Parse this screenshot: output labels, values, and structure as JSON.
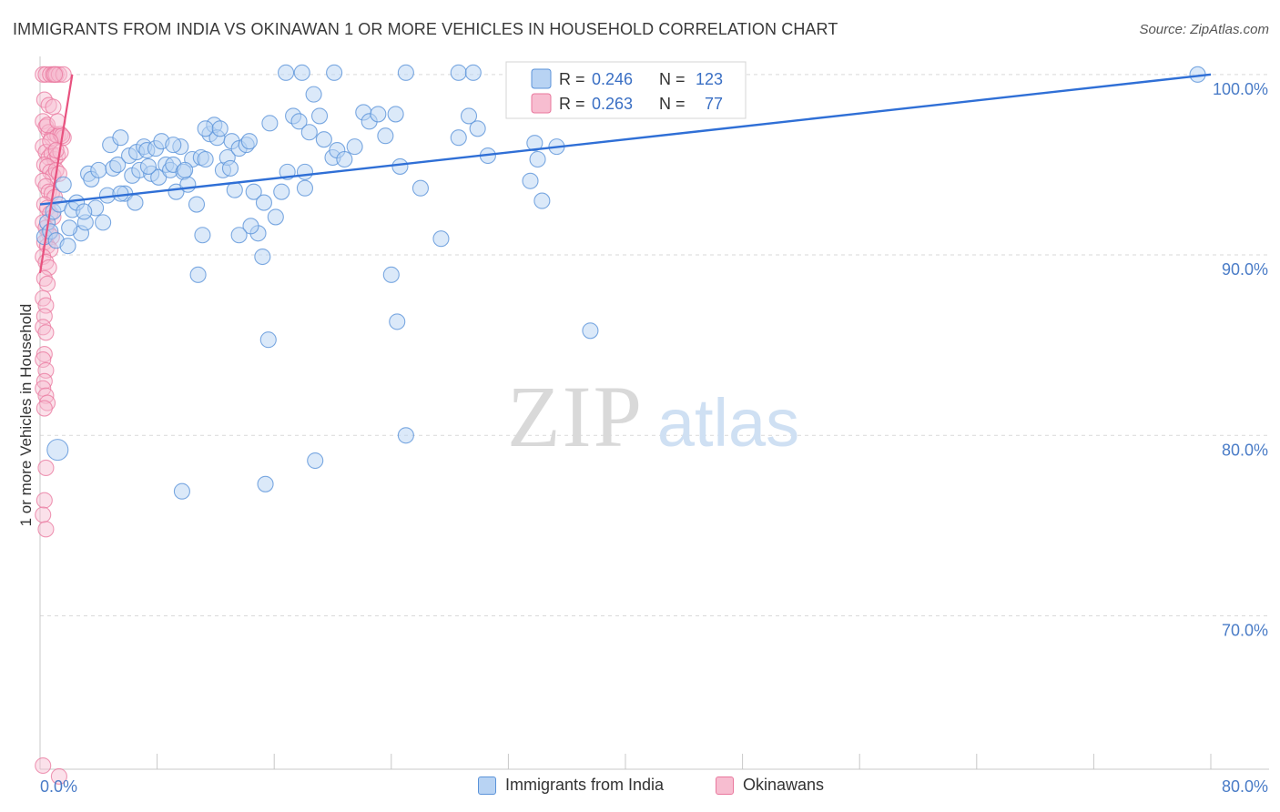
{
  "header": {
    "title": "IMMIGRANTS FROM INDIA VS OKINAWAN 1 OR MORE VEHICLES IN HOUSEHOLD CORRELATION CHART",
    "source": "Source: ZipAtlas.com"
  },
  "watermark": {
    "zip": "ZIP",
    "atlas": "atlas"
  },
  "colors": {
    "blue_fill": "#b8d3f3",
    "blue_stroke": "#5b93d9",
    "blue_line": "#2f6fd6",
    "pink_fill": "#f7bdd0",
    "pink_stroke": "#e9779d",
    "pink_line": "#e8527f",
    "tick_label": "#4a7cc7",
    "grid": "#d9d9d9"
  },
  "stats_legend": [
    {
      "r_label": "R =",
      "r_value": "0.246",
      "n_label": "N =",
      "n_value": "123"
    },
    {
      "r_label": "R =",
      "r_value": "0.263",
      "n_label": "N =",
      "n_value": "77"
    }
  ],
  "chart_data": {
    "type": "scatter",
    "title": "IMMIGRANTS FROM INDIA VS OKINAWAN 1 OR MORE VEHICLES IN HOUSEHOLD CORRELATION CHART",
    "xlabel": "",
    "ylabel": "1 or more Vehicles in Household",
    "xlim": [
      0,
      80
    ],
    "ylim": [
      61.5,
      101
    ],
    "x_tick_labels": [
      {
        "value": 0,
        "label": "0.0%"
      },
      {
        "value": 80,
        "label": "80.0%"
      }
    ],
    "x_minor_ticks": [
      0,
      8,
      16,
      24,
      32,
      40,
      48,
      56,
      64,
      72,
      80
    ],
    "y_ticks": [
      {
        "value": 100,
        "label": "100.0%"
      },
      {
        "value": 90,
        "label": "90.0%"
      },
      {
        "value": 80,
        "label": "80.0%"
      },
      {
        "value": 70,
        "label": "70.0%"
      }
    ],
    "grid": true,
    "legend_position": "bottom-center",
    "series": [
      {
        "name": "Immigrants from India",
        "color": "#5b93d9",
        "r": 0.246,
        "n": 123,
        "trend": [
          [
            0,
            92.8
          ],
          [
            80,
            100.0
          ]
        ],
        "points": [
          [
            0.3,
            91.0
          ],
          [
            0.5,
            91.8
          ],
          [
            0.7,
            91.3
          ],
          [
            0.9,
            92.4
          ],
          [
            1.1,
            90.8
          ],
          [
            1.3,
            92.8
          ],
          [
            1.6,
            93.9
          ],
          [
            1.9,
            90.5
          ],
          [
            2.2,
            92.5
          ],
          [
            2.5,
            92.9
          ],
          [
            2.8,
            91.2
          ],
          [
            3.1,
            91.8
          ],
          [
            3.3,
            94.5
          ],
          [
            3.5,
            94.2
          ],
          [
            3.8,
            92.6
          ],
          [
            4.0,
            94.7
          ],
          [
            4.3,
            91.8
          ],
          [
            4.6,
            93.3
          ],
          [
            4.8,
            96.1
          ],
          [
            5.0,
            94.8
          ],
          [
            5.3,
            95.0
          ],
          [
            5.5,
            96.5
          ],
          [
            5.8,
            93.4
          ],
          [
            6.1,
            95.5
          ],
          [
            6.3,
            94.4
          ],
          [
            6.6,
            95.7
          ],
          [
            6.8,
            94.7
          ],
          [
            7.1,
            96.0
          ],
          [
            7.3,
            95.8
          ],
          [
            7.6,
            94.5
          ],
          [
            7.9,
            95.9
          ],
          [
            8.1,
            94.3
          ],
          [
            8.3,
            96.3
          ],
          [
            8.6,
            95.0
          ],
          [
            8.9,
            94.7
          ],
          [
            9.1,
            95.0
          ],
          [
            9.3,
            93.5
          ],
          [
            9.6,
            96.0
          ],
          [
            9.8,
            94.6
          ],
          [
            10.1,
            93.9
          ],
          [
            10.4,
            95.3
          ],
          [
            10.7,
            92.8
          ],
          [
            11.0,
            95.4
          ],
          [
            11.3,
            95.3
          ],
          [
            11.6,
            96.7
          ],
          [
            11.9,
            97.2
          ],
          [
            12.1,
            96.5
          ],
          [
            12.5,
            94.7
          ],
          [
            12.8,
            95.4
          ],
          [
            13.1,
            96.3
          ],
          [
            13.3,
            93.6
          ],
          [
            13.6,
            95.9
          ],
          [
            14.1,
            96.1
          ],
          [
            14.3,
            96.3
          ],
          [
            14.6,
            93.5
          ],
          [
            14.9,
            91.2
          ],
          [
            15.3,
            92.9
          ],
          [
            15.7,
            97.3
          ],
          [
            16.1,
            92.1
          ],
          [
            16.5,
            93.5
          ],
          [
            16.9,
            94.6
          ],
          [
            17.3,
            97.7
          ],
          [
            17.7,
            97.4
          ],
          [
            18.1,
            93.7
          ],
          [
            18.4,
            96.8
          ],
          [
            18.7,
            98.9
          ],
          [
            19.1,
            97.7
          ],
          [
            19.4,
            96.4
          ],
          [
            20.0,
            95.4
          ],
          [
            20.3,
            95.8
          ],
          [
            20.8,
            95.3
          ],
          [
            22.1,
            97.9
          ],
          [
            22.5,
            97.4
          ],
          [
            23.1,
            97.8
          ],
          [
            23.6,
            96.6
          ],
          [
            24.6,
            94.9
          ],
          [
            26.0,
            93.7
          ],
          [
            27.4,
            90.9
          ],
          [
            28.6,
            96.5
          ],
          [
            29.3,
            97.7
          ],
          [
            29.9,
            97.0
          ],
          [
            30.6,
            95.5
          ],
          [
            33.8,
            96.2
          ],
          [
            34.0,
            95.3
          ],
          [
            34.3,
            93.0
          ],
          [
            11.3,
            97.0
          ],
          [
            12.3,
            97.0
          ],
          [
            14.4,
            91.6
          ],
          [
            13.0,
            94.8
          ],
          [
            9.9,
            94.7
          ],
          [
            15.2,
            89.9
          ],
          [
            16.8,
            100.1
          ],
          [
            17.9,
            100.1
          ],
          [
            20.1,
            100.1
          ],
          [
            25.0,
            100.1
          ],
          [
            28.6,
            100.1
          ],
          [
            29.6,
            100.1
          ],
          [
            32.4,
            100.1
          ],
          [
            38.1,
            100.1
          ],
          [
            9.1,
            96.1
          ],
          [
            11.1,
            91.1
          ],
          [
            13.6,
            91.1
          ],
          [
            10.8,
            88.9
          ],
          [
            15.6,
            85.3
          ],
          [
            24.0,
            88.9
          ],
          [
            24.4,
            86.3
          ],
          [
            37.6,
            85.8
          ],
          [
            25.0,
            80.0
          ],
          [
            18.8,
            78.6
          ],
          [
            9.7,
            76.9
          ],
          [
            15.4,
            77.3
          ],
          [
            79.1,
            100.0
          ],
          [
            35.3,
            96.0
          ],
          [
            33.5,
            94.1
          ],
          [
            18.1,
            94.6
          ],
          [
            21.5,
            96.0
          ],
          [
            24.3,
            97.8
          ],
          [
            5.5,
            93.4
          ],
          [
            6.5,
            92.9
          ],
          [
            7.4,
            94.9
          ],
          [
            3.0,
            92.4
          ],
          [
            1.2,
            79.2
          ],
          [
            2.0,
            91.5
          ]
        ]
      },
      {
        "name": "Okinawans",
        "color": "#e9779d",
        "r": 0.263,
        "n": 77,
        "trend": [
          [
            0.0,
            89.0
          ],
          [
            2.2,
            100.0
          ]
        ],
        "points": [
          [
            0.2,
            100.0
          ],
          [
            0.4,
            100.0
          ],
          [
            0.7,
            100.0
          ],
          [
            0.9,
            100.0
          ],
          [
            1.1,
            100.0
          ],
          [
            1.3,
            100.0
          ],
          [
            1.6,
            100.0
          ],
          [
            0.3,
            98.6
          ],
          [
            0.6,
            98.3
          ],
          [
            0.9,
            98.2
          ],
          [
            0.2,
            97.4
          ],
          [
            0.4,
            97.1
          ],
          [
            0.6,
            96.8
          ],
          [
            0.8,
            96.5
          ],
          [
            1.0,
            96.7
          ],
          [
            1.2,
            96.6
          ],
          [
            1.4,
            96.7
          ],
          [
            1.6,
            96.5
          ],
          [
            0.2,
            96.0
          ],
          [
            0.4,
            95.7
          ],
          [
            0.6,
            95.4
          ],
          [
            0.8,
            95.6
          ],
          [
            1.0,
            95.3
          ],
          [
            1.2,
            95.5
          ],
          [
            1.4,
            95.7
          ],
          [
            0.3,
            95.0
          ],
          [
            0.5,
            94.9
          ],
          [
            0.7,
            94.6
          ],
          [
            0.9,
            94.4
          ],
          [
            1.1,
            94.7
          ],
          [
            1.3,
            94.5
          ],
          [
            0.2,
            94.1
          ],
          [
            0.4,
            93.8
          ],
          [
            0.6,
            93.5
          ],
          [
            0.8,
            93.4
          ],
          [
            1.0,
            93.2
          ],
          [
            0.3,
            92.8
          ],
          [
            0.5,
            92.6
          ],
          [
            0.7,
            92.3
          ],
          [
            0.9,
            92.1
          ],
          [
            0.2,
            91.8
          ],
          [
            0.4,
            91.5
          ],
          [
            0.6,
            91.2
          ],
          [
            0.8,
            91.0
          ],
          [
            0.3,
            90.7
          ],
          [
            0.5,
            90.5
          ],
          [
            0.7,
            90.3
          ],
          [
            0.2,
            89.9
          ],
          [
            0.4,
            89.6
          ],
          [
            0.6,
            89.3
          ],
          [
            0.3,
            88.7
          ],
          [
            0.5,
            88.4
          ],
          [
            0.2,
            87.6
          ],
          [
            0.4,
            87.2
          ],
          [
            0.3,
            86.6
          ],
          [
            0.2,
            86.0
          ],
          [
            0.4,
            85.7
          ],
          [
            0.3,
            84.5
          ],
          [
            0.2,
            84.2
          ],
          [
            0.4,
            83.6
          ],
          [
            0.3,
            83.0
          ],
          [
            0.2,
            82.6
          ],
          [
            0.4,
            82.2
          ],
          [
            0.5,
            81.8
          ],
          [
            0.3,
            81.5
          ],
          [
            0.4,
            78.2
          ],
          [
            0.3,
            76.4
          ],
          [
            0.2,
            75.6
          ],
          [
            0.4,
            74.8
          ],
          [
            0.2,
            61.7
          ],
          [
            1.3,
            61.1
          ],
          [
            1.0,
            100.0
          ],
          [
            1.5,
            96.6
          ],
          [
            0.5,
            97.2
          ],
          [
            1.2,
            97.4
          ],
          [
            0.7,
            96.3
          ],
          [
            1.1,
            95.8
          ]
        ]
      }
    ]
  }
}
